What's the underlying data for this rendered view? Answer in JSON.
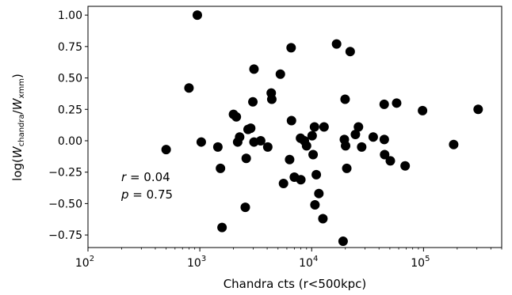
{
  "chart_data": {
    "type": "scatter",
    "xlabel": "Chandra cts (r<500kpc)",
    "ylabel": {
      "prefix": "log(",
      "w1": "W",
      "sub1": "chandra",
      "slash": "/",
      "w2": "W",
      "sub2": "xmm",
      "suffix": ")"
    },
    "xscale": "log",
    "xlim": [
      100,
      500000
    ],
    "ylim": [
      -0.85,
      1.07
    ],
    "x_ticks": [
      {
        "value": 100,
        "base": "10",
        "exp": "2"
      },
      {
        "value": 1000,
        "base": "10",
        "exp": "3"
      },
      {
        "value": 10000,
        "base": "10",
        "exp": "4"
      },
      {
        "value": 100000,
        "base": "10",
        "exp": "5"
      }
    ],
    "y_ticks": [
      {
        "value": 1.0,
        "label": "1.00"
      },
      {
        "value": 0.75,
        "label": "0.75"
      },
      {
        "value": 0.5,
        "label": "0.50"
      },
      {
        "value": 0.25,
        "label": "0.25"
      },
      {
        "value": 0.0,
        "label": "0.00"
      },
      {
        "value": -0.25,
        "label": "−0.25"
      },
      {
        "value": -0.5,
        "label": "−0.50"
      },
      {
        "value": -0.75,
        "label": "−0.75"
      }
    ],
    "annotations": {
      "r": {
        "symbol": "r",
        "text": " = 0.04"
      },
      "p": {
        "symbol": "p",
        "text": " = 0.75"
      }
    },
    "marker_color": "#000000",
    "points": [
      {
        "x": 500,
        "y": -0.07
      },
      {
        "x": 800,
        "y": 0.42
      },
      {
        "x": 950,
        "y": 1.0
      },
      {
        "x": 1030,
        "y": -0.01
      },
      {
        "x": 1450,
        "y": -0.05
      },
      {
        "x": 1530,
        "y": -0.22
      },
      {
        "x": 1580,
        "y": -0.69
      },
      {
        "x": 2000,
        "y": 0.21
      },
      {
        "x": 2120,
        "y": 0.19
      },
      {
        "x": 2180,
        "y": -0.01
      },
      {
        "x": 2270,
        "y": 0.03
      },
      {
        "x": 2550,
        "y": -0.53
      },
      {
        "x": 2600,
        "y": -0.14
      },
      {
        "x": 2700,
        "y": 0.09
      },
      {
        "x": 2850,
        "y": 0.1
      },
      {
        "x": 2980,
        "y": 0.31
      },
      {
        "x": 3050,
        "y": 0.57
      },
      {
        "x": 3050,
        "y": -0.01
      },
      {
        "x": 3500,
        "y": 0.0
      },
      {
        "x": 4050,
        "y": -0.05
      },
      {
        "x": 4350,
        "y": 0.38
      },
      {
        "x": 4400,
        "y": 0.33
      },
      {
        "x": 5250,
        "y": 0.53
      },
      {
        "x": 5600,
        "y": -0.34
      },
      {
        "x": 6350,
        "y": -0.15
      },
      {
        "x": 6550,
        "y": 0.74
      },
      {
        "x": 6600,
        "y": 0.16
      },
      {
        "x": 7000,
        "y": -0.29
      },
      {
        "x": 7950,
        "y": 0.02
      },
      {
        "x": 8000,
        "y": -0.31
      },
      {
        "x": 8600,
        "y": 0.0
      },
      {
        "x": 9000,
        "y": -0.04
      },
      {
        "x": 10100,
        "y": 0.04
      },
      {
        "x": 10300,
        "y": -0.11
      },
      {
        "x": 10600,
        "y": 0.11
      },
      {
        "x": 10700,
        "y": -0.51
      },
      {
        "x": 11000,
        "y": -0.27
      },
      {
        "x": 11600,
        "y": -0.42
      },
      {
        "x": 12600,
        "y": -0.62
      },
      {
        "x": 12900,
        "y": 0.11
      },
      {
        "x": 16700,
        "y": 0.77
      },
      {
        "x": 19100,
        "y": -0.8
      },
      {
        "x": 19600,
        "y": 0.01
      },
      {
        "x": 19900,
        "y": 0.33
      },
      {
        "x": 20100,
        "y": -0.04
      },
      {
        "x": 20600,
        "y": -0.22
      },
      {
        "x": 22100,
        "y": 0.71
      },
      {
        "x": 24600,
        "y": 0.05
      },
      {
        "x": 26200,
        "y": 0.11
      },
      {
        "x": 28000,
        "y": -0.05
      },
      {
        "x": 35500,
        "y": 0.03
      },
      {
        "x": 44500,
        "y": 0.29
      },
      {
        "x": 44600,
        "y": 0.01
      },
      {
        "x": 44900,
        "y": -0.11
      },
      {
        "x": 50500,
        "y": -0.16
      },
      {
        "x": 57500,
        "y": 0.3
      },
      {
        "x": 68500,
        "y": -0.2
      },
      {
        "x": 98000,
        "y": 0.24
      },
      {
        "x": 186000,
        "y": -0.03
      },
      {
        "x": 308000,
        "y": 0.25
      }
    ]
  }
}
